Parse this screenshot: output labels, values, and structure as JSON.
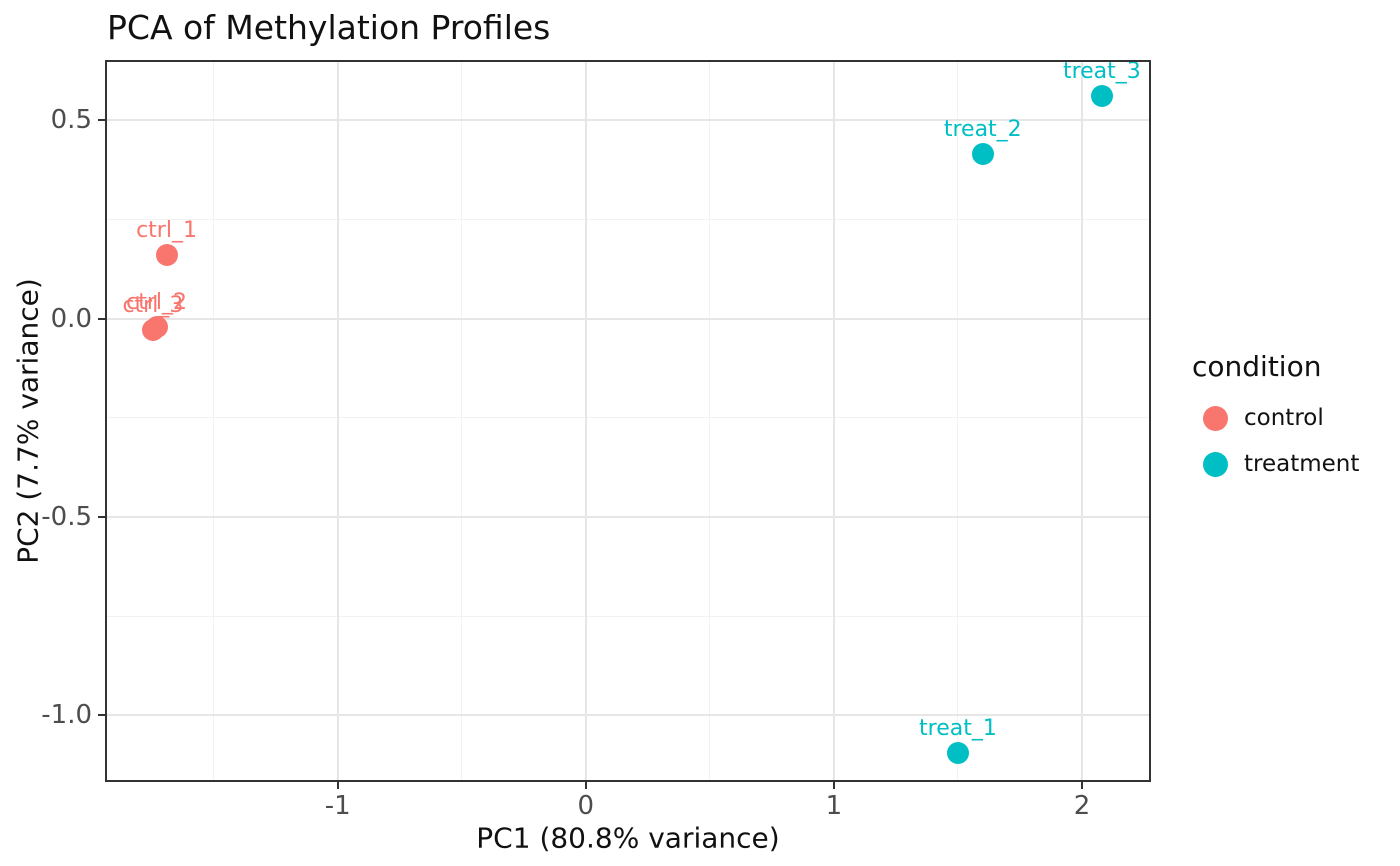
{
  "chart_data": {
    "type": "scatter",
    "title": "PCA of Methylation Profiles",
    "xlabel": "PC1 (80.8% variance)",
    "ylabel": "PC2 (7.7% variance)",
    "legend_title": "condition",
    "legend_position": "right",
    "grid": true,
    "xlim": [
      -1.93,
      2.27
    ],
    "ylim": [
      -1.163,
      0.647
    ],
    "xticks": {
      "values": [
        -1,
        0,
        1,
        2
      ],
      "labels": [
        "-1",
        "0",
        "1",
        "2"
      ],
      "minor": [
        -1.5,
        -0.5,
        0.5,
        1.5
      ]
    },
    "yticks": {
      "values": [
        0.5,
        0.0,
        -0.5,
        -1.0
      ],
      "labels": [
        "0.5",
        "0.0",
        "-0.5",
        "-1.0"
      ],
      "minor": [
        0.25,
        -0.25,
        -0.75
      ]
    },
    "series": [
      {
        "name": "control",
        "color": "#F8766D",
        "points": [
          {
            "label": "ctrl_1",
            "x": -1.69,
            "y": 0.16
          },
          {
            "label": "ctrl_2",
            "x": -1.73,
            "y": -0.02
          },
          {
            "label": "ctrl_3",
            "x": -1.745,
            "y": -0.028
          }
        ]
      },
      {
        "name": "treatment",
        "color": "#00BFC4",
        "points": [
          {
            "label": "treat_1",
            "x": 1.5,
            "y": -1.095
          },
          {
            "label": "treat_2",
            "x": 1.6,
            "y": 0.415
          },
          {
            "label": "treat_3",
            "x": 2.08,
            "y": 0.562
          }
        ]
      }
    ],
    "theme_colors": {
      "background": "#ffffff",
      "panel_border": "#333333",
      "grid_major": "#e6e6e6",
      "grid_minor": "#f2f2f2",
      "tick_mark": "#333333",
      "tick_label": "#4d4d4d",
      "text": "#111111"
    }
  }
}
